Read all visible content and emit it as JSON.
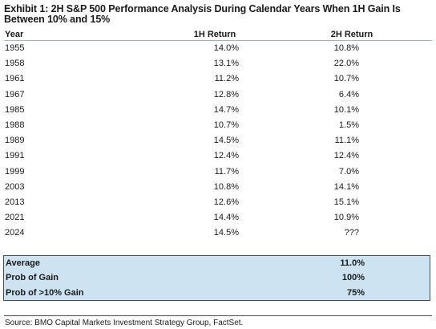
{
  "exhibit": {
    "title": "Exhibit 1: 2H S&P 500 Performance Analysis During Calendar Years When 1H Gain Is Between 10% and 15%"
  },
  "table": {
    "headers": {
      "year": "Year",
      "first_half": "1H Return",
      "second_half": "2H Return"
    },
    "rows": [
      {
        "year": "1955",
        "first_half": "14.0%",
        "second_half": "10.8%"
      },
      {
        "year": "1958",
        "first_half": "13.1%",
        "second_half": "22.0%"
      },
      {
        "year": "1961",
        "first_half": "11.2%",
        "second_half": "10.7%"
      },
      {
        "year": "1967",
        "first_half": "12.8%",
        "second_half": "6.4%"
      },
      {
        "year": "1985",
        "first_half": "14.7%",
        "second_half": "10.1%"
      },
      {
        "year": "1988",
        "first_half": "10.7%",
        "second_half": "1.5%"
      },
      {
        "year": "1989",
        "first_half": "14.5%",
        "second_half": "11.1%"
      },
      {
        "year": "1991",
        "first_half": "12.4%",
        "second_half": "12.4%"
      },
      {
        "year": "1999",
        "first_half": "11.7%",
        "second_half": "7.0%"
      },
      {
        "year": "2003",
        "first_half": "10.8%",
        "second_half": "14.1%"
      },
      {
        "year": "2013",
        "first_half": "12.6%",
        "second_half": "15.1%"
      },
      {
        "year": "2021",
        "first_half": "14.4%",
        "second_half": "10.9%"
      },
      {
        "year": "2024",
        "first_half": "14.5%",
        "second_half": "???"
      }
    ]
  },
  "summary": [
    {
      "label": "Average",
      "value": "11.0%"
    },
    {
      "label": "Prob of Gain",
      "value": "100%"
    },
    {
      "label": "Prob of >10% Gain",
      "value": "75%"
    }
  ],
  "source": "Source: BMO Capital Markets Investment Strategy Group, FactSet.",
  "colors": {
    "summary_background": "#cde3f2",
    "header_rule": "#9fb9cc",
    "border": "#4d4d4d"
  }
}
